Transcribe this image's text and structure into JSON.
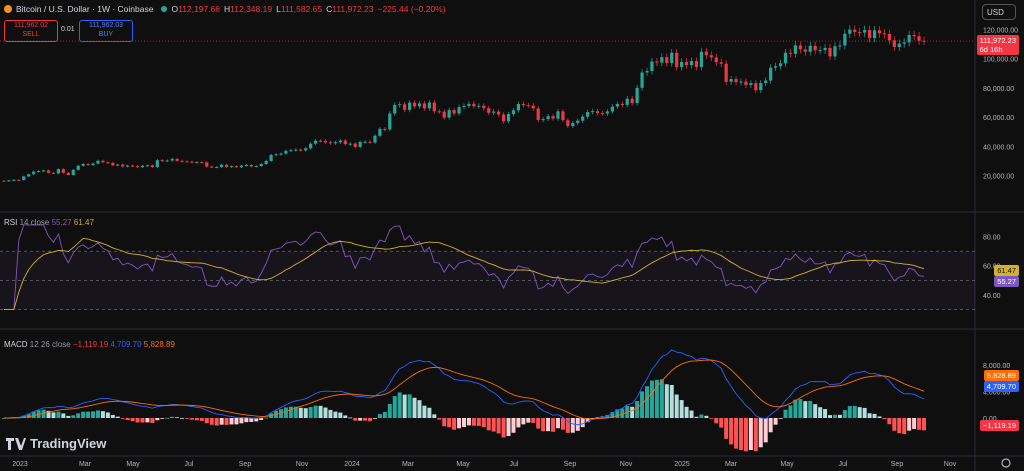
{
  "header": {
    "title": "Bitcoin / U.S. Dollar · 1W · Coinbase",
    "open_label": "O",
    "open": "112,197.66",
    "high_label": "H",
    "high": "112,348.19",
    "low_label": "L",
    "low": "111,582.65",
    "close_label": "C",
    "close": "111,972.23",
    "change": "−225.44 (−0.20%)"
  },
  "trade": {
    "sell_price": "111,962.02",
    "sell_label": "SELL",
    "spread": "0.01",
    "buy_price": "111,962.03",
    "buy_label": "BUY"
  },
  "currency": "USD",
  "price_tag": {
    "value": "111,972.23",
    "countdown": "6d 16h"
  },
  "price_axis": [
    "120,000.00",
    "100,000.00",
    "80,000.00",
    "60,000.00",
    "40,000.00",
    "20,000.00"
  ],
  "rsi": {
    "name": "RSI",
    "params": "14 close",
    "value": "55.27",
    "ma": "61.47",
    "axis": [
      "80.00",
      "60.00",
      "40.00"
    ]
  },
  "macd": {
    "name": "MACD",
    "params": "12 26 close",
    "hist": "−1,119.19",
    "macd": "4,709.70",
    "signal": "5,828.89",
    "axis": [
      "8,000.00",
      "4,000.00",
      "0.00"
    ]
  },
  "time_axis": [
    "2023",
    "Mar",
    "May",
    "Jul",
    "Sep",
    "Nov",
    "2024",
    "Mar",
    "May",
    "Jul",
    "Sep",
    "Nov",
    "2025",
    "Mar",
    "May",
    "Jul",
    "Sep",
    "Nov"
  ],
  "brand": "TradingView",
  "colors": {
    "up": "#26a69a",
    "down": "#f23645",
    "rsi": "#7e57c2",
    "rsi_ma": "#d4b02c",
    "macd": "#2962ff",
    "signal": "#ff6d00",
    "bg": "#0f0f0f"
  },
  "icons": [
    "bitcoin-icon",
    "live-dot-icon",
    "tradingview-logo-icon",
    "settings-gear-icon"
  ],
  "chart_data": {
    "type": "candlestick",
    "timeframe": "1W",
    "y_range": [
      0,
      125000
    ],
    "close": [
      16500,
      16800,
      17200,
      17000,
      19500,
      21000,
      22800,
      23200,
      23600,
      22000,
      21500,
      24500,
      22000,
      20500,
      24000,
      26800,
      28000,
      27300,
      28300,
      30200,
      29200,
      28800,
      27100,
      27600,
      26300,
      26900,
      26500,
      25800,
      26800,
      27100,
      25900,
      30600,
      30200,
      30400,
      31500,
      30200,
      29800,
      29600,
      29200,
      29300,
      29100,
      26200,
      25900,
      25900,
      27500,
      26000,
      26500,
      25800,
      26900,
      27300,
      26300,
      26600,
      28000,
      30100,
      34200,
      34600,
      35100,
      37000,
      37400,
      37800,
      37300,
      38700,
      41900,
      43900,
      43800,
      42800,
      42100,
      42800,
      44000,
      41600,
      41900,
      39700,
      43000,
      43200,
      42700,
      47300,
      52000,
      51700,
      62500,
      68400,
      68800,
      65000,
      69900,
      67400,
      69400,
      66000,
      70000,
      64000,
      63800,
      59700,
      64900,
      62500,
      66900,
      67700,
      69100,
      67400,
      67800,
      66100,
      63000,
      63800,
      61800,
      57200,
      62100,
      64700,
      69000,
      68200,
      67900,
      66000,
      58000,
      58700,
      60700,
      59000,
      64000,
      57900,
      53900,
      56000,
      57600,
      60300,
      63500,
      64100,
      62800,
      62500,
      63900,
      67200,
      69000,
      68400,
      72600,
      69600,
      80000,
      90500,
      91500,
      98000,
      97300,
      101000,
      97000,
      104000,
      94200,
      97700,
      95500,
      98300,
      94300,
      104700,
      102300,
      100800,
      97500,
      96500,
      84200,
      86000,
      83900,
      84300,
      82000,
      83200,
      78400,
      83300,
      85000,
      93800,
      94800,
      96800,
      104000,
      103300,
      109000,
      106300,
      104700,
      108700,
      105600,
      105800,
      107300,
      101500,
      108400,
      109000,
      117000,
      119800,
      118100,
      117800,
      119500,
      114000,
      119300,
      117300,
      116800,
      112500,
      107900,
      110200,
      111100,
      116100,
      115300,
      112200,
      111972
    ],
    "rsi": {
      "value": 55.27,
      "ma": 61.47,
      "bands": [
        70,
        50,
        30
      ]
    },
    "macd": {
      "macd": 4709.7,
      "signal": 5828.89,
      "histogram": -1119.19
    }
  }
}
